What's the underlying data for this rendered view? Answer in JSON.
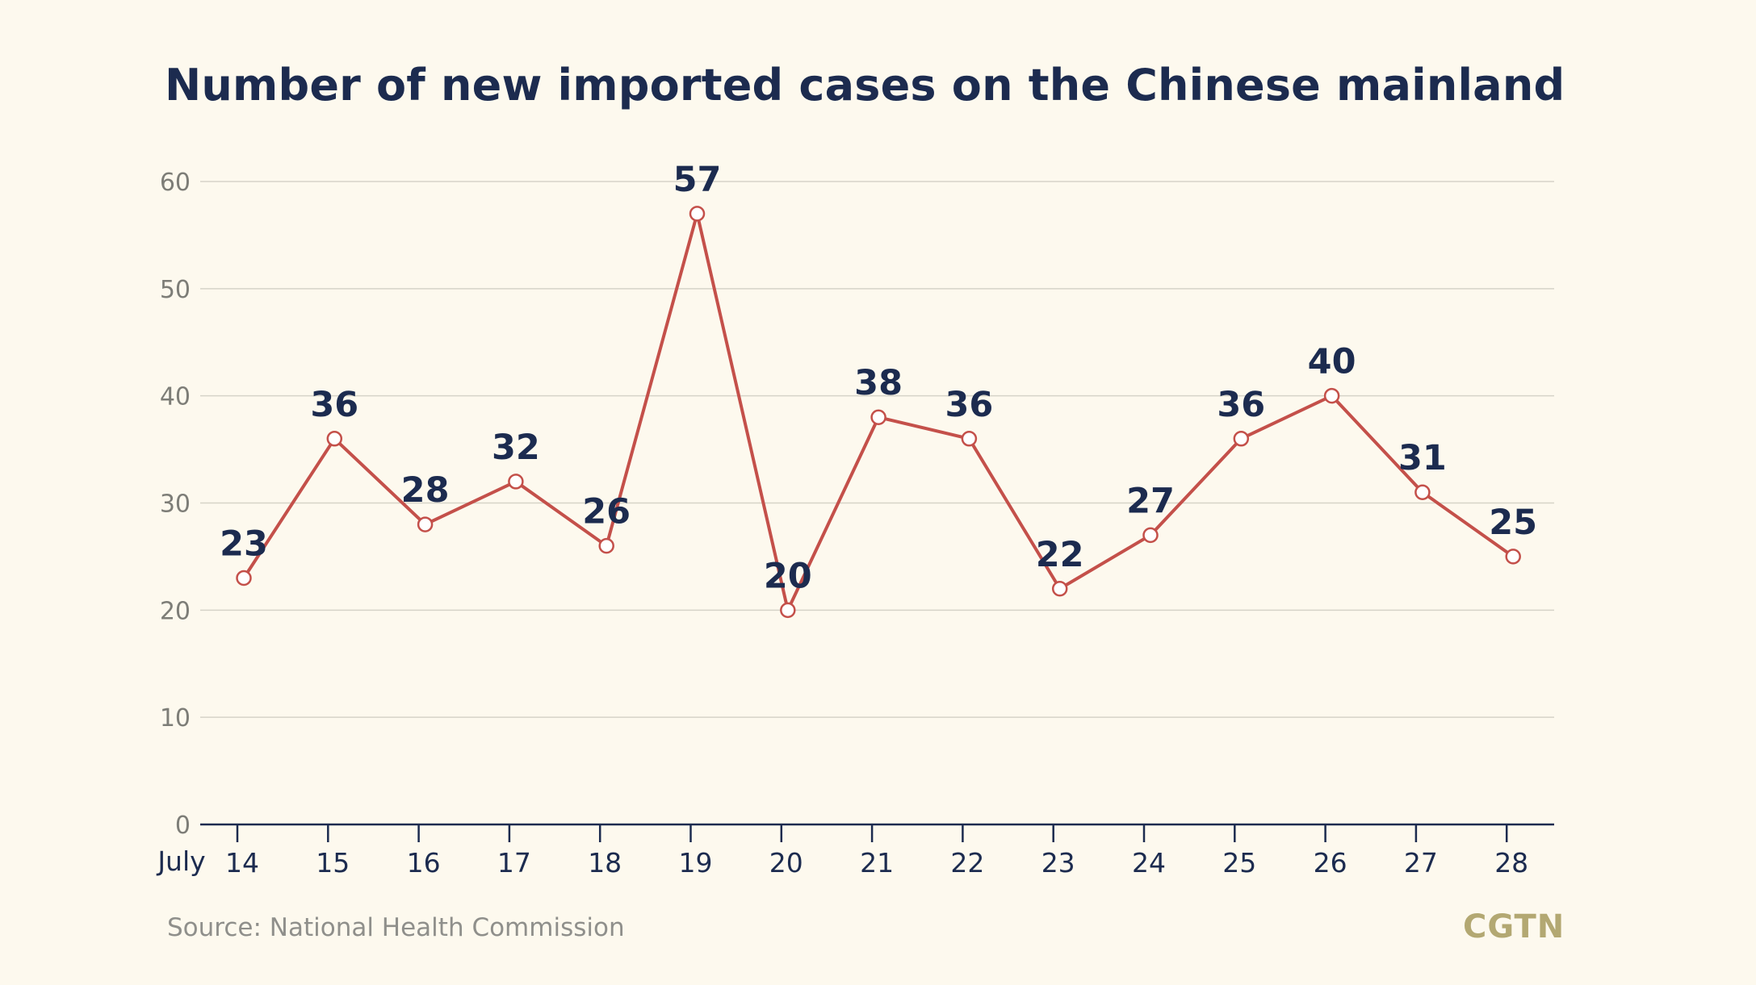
{
  "title": "Number of new imported cases on the Chinese mainland",
  "source": "Source: National Health Commission",
  "logo": "CGTN",
  "colors": {
    "background": "#fdf9ee",
    "line": "#c4504a",
    "title": "#1c2b4f",
    "grid": "#d6d3c8",
    "axis": "#1c2b4f",
    "source": "#8f8f8b",
    "logo": "#b3a872"
  },
  "chart_data": {
    "type": "line",
    "title": "Number of new imported cases on the Chinese mainland",
    "xlabel": "July",
    "ylabel": "",
    "x": [
      "14",
      "15",
      "16",
      "17",
      "18",
      "19",
      "20",
      "21",
      "22",
      "23",
      "24",
      "25",
      "26",
      "27",
      "28"
    ],
    "series": [
      {
        "values": [
          23,
          36,
          28,
          32,
          26,
          57,
          20,
          38,
          36,
          22,
          27,
          36,
          40,
          31,
          25
        ]
      }
    ],
    "ylim": [
      0,
      60
    ],
    "yticks": [
      0,
      10,
      20,
      30,
      40,
      50,
      60
    ],
    "grid": true,
    "legend": "none",
    "data_labels": true
  }
}
